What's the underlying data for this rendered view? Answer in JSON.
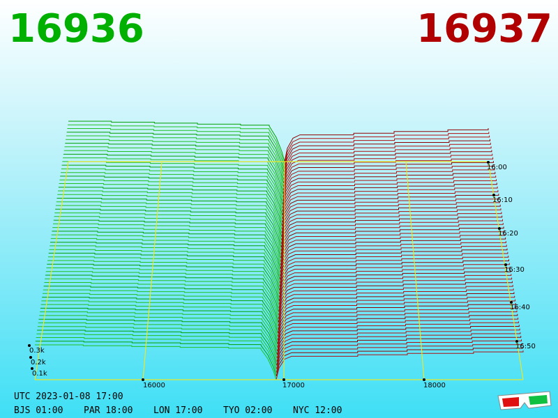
{
  "bid": "16936",
  "ask": "16937",
  "price_axis": [
    "16000",
    "17000",
    "18000"
  ],
  "time_axis": [
    "16:00",
    "16:10",
    "16:20",
    "16:30",
    "16:40",
    "16:50"
  ],
  "volume_axis": [
    "0.3k",
    "0.2k",
    "0.1k"
  ],
  "clock": {
    "utc": "UTC 2023-01-08 17:00",
    "cities": [
      "BJS 01:00",
      "PAR 18:00",
      "LON 17:00",
      "TYO 02:00",
      "NYC 12:00"
    ]
  }
}
